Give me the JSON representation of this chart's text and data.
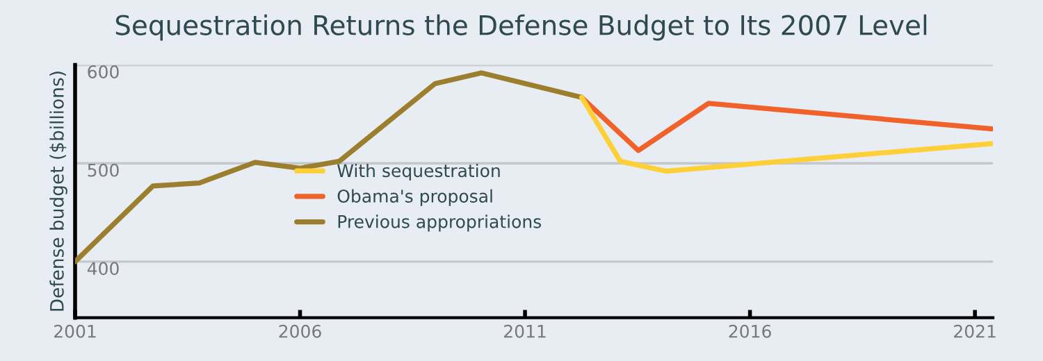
{
  "chart_data": {
    "type": "line",
    "title": "Sequestration Returns the Defense Budget to Its 2007 Level",
    "ylabel": "Defense budget ($billions)",
    "series": [
      {
        "name": "With sequestration",
        "color": "#fdd037",
        "x": [
          2012.26,
          2013.12,
          2014.13,
          2021.38
        ],
        "values": [
          567,
          502,
          492,
          520
        ]
      },
      {
        "name": "Obama's proposal",
        "color": "#f0622a",
        "x": [
          2012.26,
          2013.52,
          2015.08,
          2021.38
        ],
        "values": [
          567,
          513,
          561,
          535
        ]
      },
      {
        "name": "Previous appropriations",
        "color": "#9b7f2f",
        "x": [
          2001,
          2002.73,
          2003.76,
          2005.0,
          2006.0,
          2006.87,
          2009.0,
          2010.03,
          2012.26
        ],
        "values": [
          400,
          477,
          480,
          501,
          495,
          502,
          581,
          592,
          567
        ]
      }
    ],
    "xlim": [
      2001,
      2021.4
    ],
    "xticks": [
      2001,
      2006,
      2011,
      2016,
      2021
    ],
    "ylim": [
      343,
      600
    ],
    "yticks": [
      400,
      500,
      600
    ],
    "grid": "y",
    "legend": "center",
    "marker": "none",
    "line_style": "solid"
  }
}
